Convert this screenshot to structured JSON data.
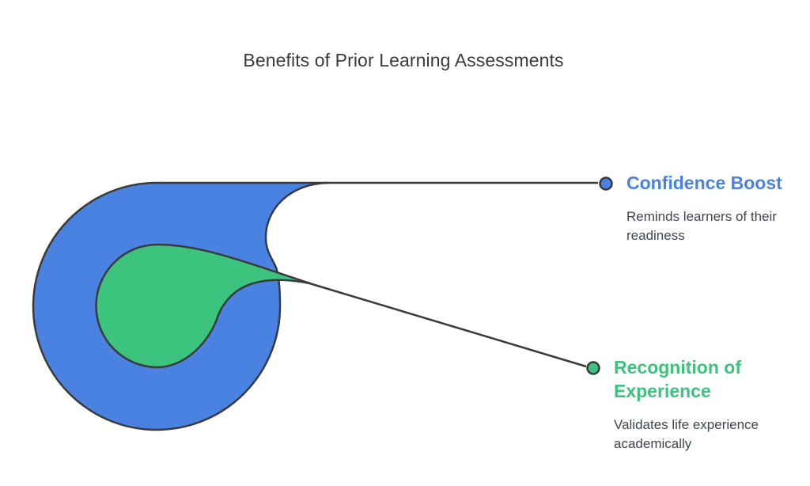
{
  "title": "Benefits of Prior Learning Assessments",
  "colors": {
    "outer_shape": "#4a82e2",
    "inner_shape": "#3cc37e",
    "outline": "#3a3a3a",
    "heading_blue": "#4a82e2",
    "heading_green": "#3cc37e",
    "description_text": "#3e4451"
  },
  "items": [
    {
      "heading": "Confidence Boost",
      "description": "Reminds learners of their readiness",
      "color": "#4a82e2"
    },
    {
      "heading": "Recognition of Experience",
      "description": "Validates life experience academically",
      "color": "#3cc37e"
    }
  ]
}
